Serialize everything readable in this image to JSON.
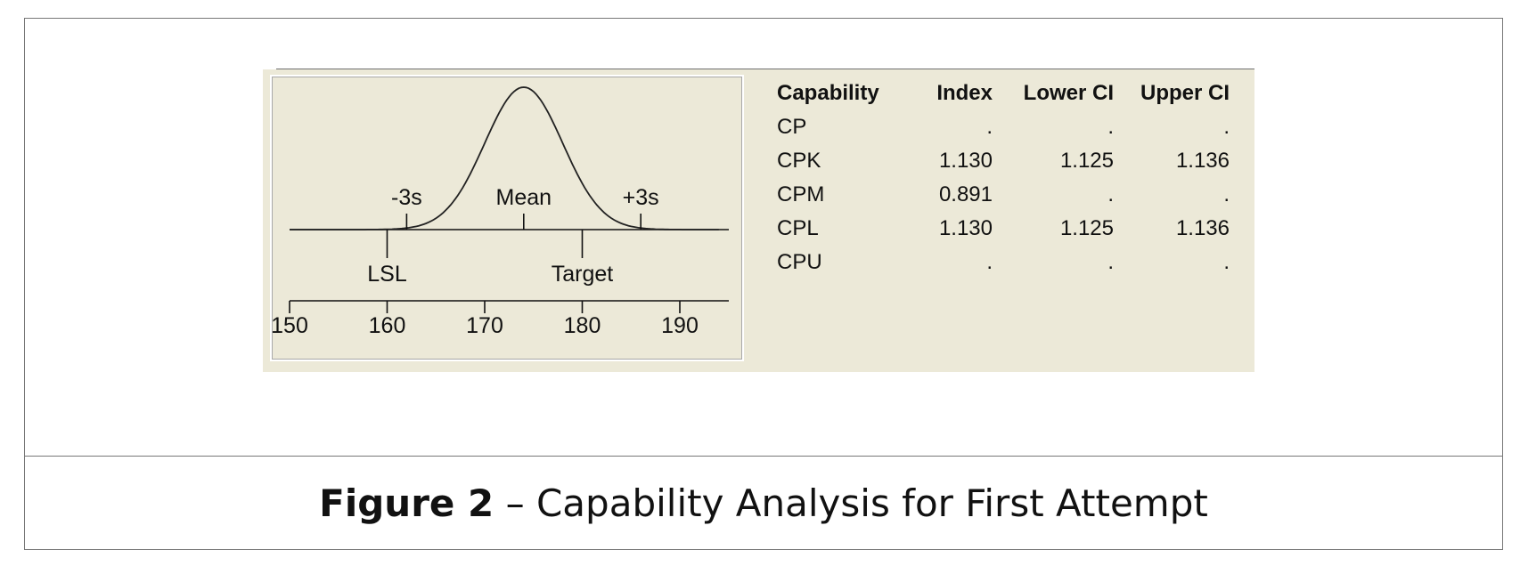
{
  "caption": {
    "label": "Figure 2",
    "separator": "–",
    "text": "Capability Analysis for First Attempt"
  },
  "chart_data": {
    "type": "area",
    "distribution": "normal",
    "mean": 174,
    "sigma": 4,
    "x_ticks": [
      150,
      160,
      170,
      180,
      190
    ],
    "xlim": [
      150,
      195
    ],
    "markers": [
      {
        "name": "-3s",
        "x": 162,
        "position": "above"
      },
      {
        "name": "Mean",
        "x": 174,
        "position": "above"
      },
      {
        "name": "+3s",
        "x": 186,
        "position": "above"
      },
      {
        "name": "LSL",
        "x": 160,
        "position": "below"
      },
      {
        "name": "Target",
        "x": 180,
        "position": "below"
      }
    ]
  },
  "table": {
    "headers": [
      "Capability",
      "Index",
      "Lower CI",
      "Upper CI"
    ],
    "rows": [
      [
        "CP",
        ".",
        ".",
        "."
      ],
      [
        "CPK",
        "1.130",
        "1.125",
        "1.136"
      ],
      [
        "CPM",
        "0.891",
        ".",
        "."
      ],
      [
        "CPL",
        "1.130",
        "1.125",
        "1.136"
      ],
      [
        "CPU",
        ".",
        ".",
        "."
      ]
    ]
  }
}
